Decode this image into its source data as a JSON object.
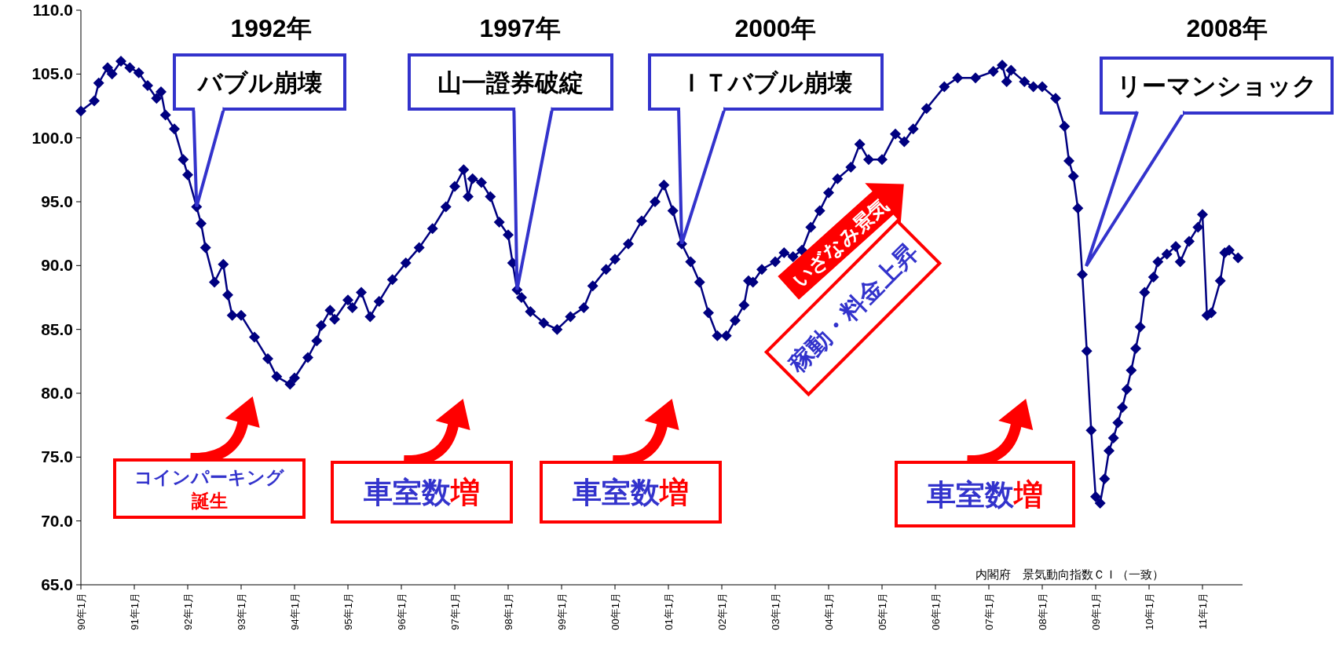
{
  "chart_data": {
    "type": "line",
    "color": "#000080",
    "marker": "diamond",
    "line_style": "solid",
    "grid": false,
    "x": [
      "1990-01",
      "1990-04",
      "1990-05",
      "1990-07",
      "1990-08",
      "1990-10",
      "1990-12",
      "1991-02",
      "1991-04",
      "1991-06",
      "1991-07",
      "1991-08",
      "1991-10",
      "1991-12",
      "1992-01",
      "1992-03",
      "1992-04",
      "1992-05",
      "1992-07",
      "1992-09",
      "1992-10",
      "1992-11",
      "1993-01",
      "1993-04",
      "1993-07",
      "1993-09",
      "1993-12",
      "1994-01",
      "1994-04",
      "1994-06",
      "1994-07",
      "1994-09",
      "1994-10",
      "1995-01",
      "1995-02",
      "1995-04",
      "1995-06",
      "1995-08",
      "1995-11",
      "1996-02",
      "1996-05",
      "1996-08",
      "1996-11",
      "1997-01",
      "1997-03",
      "1997-04",
      "1997-05",
      "1997-07",
      "1997-09",
      "1997-11",
      "1998-01",
      "1998-02",
      "1998-03",
      "1998-04",
      "1998-06",
      "1998-09",
      "1998-12",
      "1999-03",
      "1999-06",
      "1999-08",
      "1999-11",
      "2000-01",
      "2000-04",
      "2000-07",
      "2000-10",
      "2000-12",
      "2001-02",
      "2001-04",
      "2001-06",
      "2001-08",
      "2001-10",
      "2001-12",
      "2002-02",
      "2002-04",
      "2002-06",
      "2002-07",
      "2002-08",
      "2002-10",
      "2003-01",
      "2003-03",
      "2003-05",
      "2003-07",
      "2003-09",
      "2003-11",
      "2004-01",
      "2004-03",
      "2004-06",
      "2004-08",
      "2004-10",
      "2005-01",
      "2005-04",
      "2005-06",
      "2005-08",
      "2005-11",
      "2006-03",
      "2006-06",
      "2006-10",
      "2007-02",
      "2007-04",
      "2007-05",
      "2007-06",
      "2007-09",
      "2007-11",
      "2008-01",
      "2008-04",
      "2008-06",
      "2008-07",
      "2008-08",
      "2008-09",
      "2008-10",
      "2008-11",
      "2008-12",
      "2009-01",
      "2009-02",
      "2009-03",
      "2009-04",
      "2009-05",
      "2009-06",
      "2009-07",
      "2009-08",
      "2009-09",
      "2009-10",
      "2009-11",
      "2009-12",
      "2010-02",
      "2010-03",
      "2010-05",
      "2010-07",
      "2010-08",
      "2010-10",
      "2010-12",
      "2011-01",
      "2011-02",
      "2011-03",
      "2011-05",
      "2011-06",
      "2011-07",
      "2011-09"
    ],
    "values": [
      102.1,
      102.9,
      104.3,
      105.5,
      105.0,
      106.0,
      105.5,
      105.1,
      104.1,
      103.1,
      103.6,
      101.8,
      100.7,
      98.3,
      97.1,
      94.6,
      93.3,
      91.4,
      88.7,
      90.1,
      87.7,
      86.1,
      86.1,
      84.4,
      82.7,
      81.3,
      80.7,
      81.2,
      82.8,
      84.1,
      85.3,
      86.5,
      85.8,
      87.3,
      86.7,
      87.9,
      86.0,
      87.2,
      88.9,
      90.2,
      91.4,
      92.9,
      94.6,
      96.2,
      97.5,
      95.4,
      96.8,
      96.5,
      95.4,
      93.4,
      92.4,
      90.2,
      88.1,
      87.5,
      86.4,
      85.5,
      85.0,
      86.0,
      86.7,
      88.4,
      89.7,
      90.5,
      91.7,
      93.5,
      95.0,
      96.3,
      94.3,
      91.7,
      90.3,
      88.7,
      86.3,
      84.5,
      84.5,
      85.7,
      86.9,
      88.8,
      88.7,
      89.7,
      90.3,
      91.0,
      90.7,
      91.2,
      93.0,
      94.3,
      95.7,
      96.8,
      97.7,
      99.5,
      98.3,
      98.3,
      100.3,
      99.7,
      100.7,
      102.3,
      104.0,
      104.7,
      104.7,
      105.2,
      105.7,
      104.4,
      105.3,
      104.4,
      104.0,
      104.0,
      103.1,
      100.9,
      98.2,
      97.0,
      94.5,
      89.3,
      83.3,
      77.1,
      71.9,
      71.4,
      73.3,
      75.5,
      76.5,
      77.7,
      78.9,
      80.3,
      81.8,
      83.5,
      85.2,
      87.9,
      89.1,
      90.3,
      90.9,
      91.5,
      90.3,
      91.9,
      93.0,
      94.0,
      86.1,
      86.3,
      88.8,
      91.0,
      91.2,
      90.6
    ],
    "xlim": [
      "1990-01",
      "2011-10"
    ],
    "xticks": [
      {
        "value": "1990-01",
        "label": "90年1月"
      },
      {
        "value": "1991-01",
        "label": "91年1月"
      },
      {
        "value": "1992-01",
        "label": "92年1月"
      },
      {
        "value": "1993-01",
        "label": "93年1月"
      },
      {
        "value": "1994-01",
        "label": "94年1月"
      },
      {
        "value": "1995-01",
        "label": "95年1月"
      },
      {
        "value": "1996-01",
        "label": "96年1月"
      },
      {
        "value": "1997-01",
        "label": "97年1月"
      },
      {
        "value": "1998-01",
        "label": "98年1月"
      },
      {
        "value": "1999-01",
        "label": "99年1月"
      },
      {
        "value": "2000-01",
        "label": "00年1月"
      },
      {
        "value": "2001-01",
        "label": "01年1月"
      },
      {
        "value": "2002-01",
        "label": "02年1月"
      },
      {
        "value": "2003-01",
        "label": "03年1月"
      },
      {
        "value": "2004-01",
        "label": "04年1月"
      },
      {
        "value": "2005-01",
        "label": "05年1月"
      },
      {
        "value": "2006-01",
        "label": "06年1月"
      },
      {
        "value": "2007-01",
        "label": "07年1月"
      },
      {
        "value": "2008-01",
        "label": "08年1月"
      },
      {
        "value": "2009-01",
        "label": "09年1月"
      },
      {
        "value": "2010-01",
        "label": "10年1月"
      },
      {
        "value": "2011-01",
        "label": "11年1月"
      }
    ],
    "ylim": [
      65,
      110
    ],
    "yticks": [
      {
        "value": 65,
        "label": "65.0"
      },
      {
        "value": 70,
        "label": "70.0"
      },
      {
        "value": 75,
        "label": "75.0"
      },
      {
        "value": 80,
        "label": "80.0"
      },
      {
        "value": 85,
        "label": "85.0"
      },
      {
        "value": 90,
        "label": "90.0"
      },
      {
        "value": 95,
        "label": "95.0"
      },
      {
        "value": 100,
        "label": "100.0"
      },
      {
        "value": 105,
        "label": "105.0"
      },
      {
        "value": 110,
        "label": "110.0"
      }
    ],
    "annotations": [
      "1992年",
      "1997年",
      "2000年",
      "2008年",
      {
        "text": "バブル崩壊",
        "x": "1992-03",
        "y": 94.6
      },
      {
        "text": "山一證券破綻",
        "x": "1998-03",
        "y": 88.1
      },
      {
        "text": "ＩＴバブル崩壊",
        "x": "2001-04",
        "y": 91.7
      },
      "リーマンショック",
      "コインパーキング誕生",
      "車室数増",
      "車室数増",
      "車室数増",
      "いざなみ景気",
      "稼動・料金上昇",
      "内閣府　景気動向指数ＣＩ（一致）"
    ]
  }
}
